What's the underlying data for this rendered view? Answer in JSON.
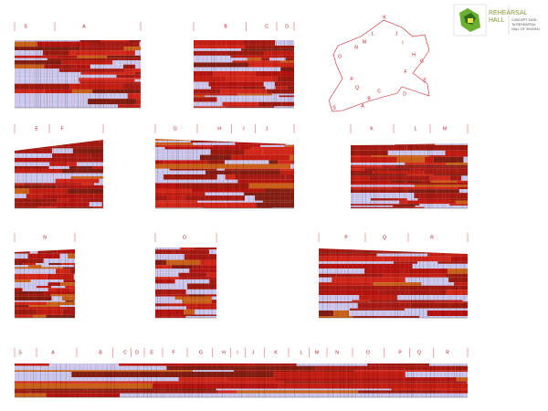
{
  "panels": [
    {
      "labels": [
        "S",
        "A"
      ]
    },
    {
      "labels": [
        "B",
        "C",
        "D"
      ]
    },
    {
      "labels": [
        "E",
        "F"
      ]
    },
    {
      "labels": [
        "G",
        "H",
        "I",
        "J"
      ]
    },
    {
      "labels": [
        "K",
        "L",
        "M"
      ]
    },
    {
      "labels": [
        "N"
      ]
    },
    {
      "labels": [
        "O"
      ]
    },
    {
      "labels": [
        "P",
        "Q",
        "R"
      ]
    },
    {
      "labels": [
        "S",
        "A",
        "B",
        "C",
        "D",
        "E",
        "F",
        "G",
        "H",
        "I",
        "J",
        "K",
        "L",
        "M",
        "N",
        "O",
        "P",
        "Q",
        "R"
      ]
    }
  ],
  "plan": {
    "labels": [
      "K",
      "L",
      "J",
      "M",
      "I",
      "N",
      "H",
      "O",
      "G",
      "F",
      "P",
      "Q",
      "E",
      "D",
      "C",
      "B",
      "A",
      "S"
    ]
  },
  "logo": {
    "title_lines": [
      "REHEARSAL",
      "HALL"
    ],
    "caption_lines": [
      "CONCEPT DATA",
      "TA REHEARSAL",
      "HALL OF XINGHAI"
    ]
  }
}
